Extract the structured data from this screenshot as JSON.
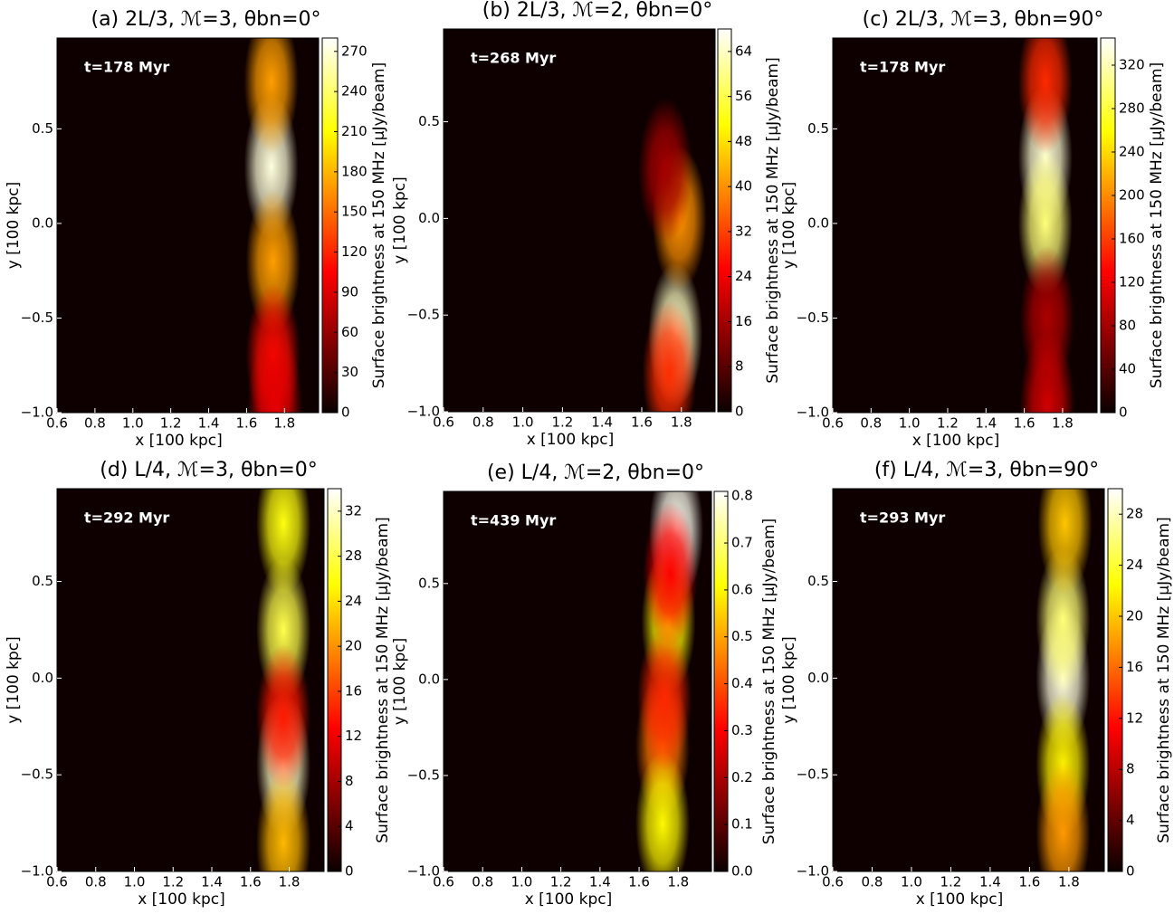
{
  "chart_data": [
    {
      "type": "heatmap",
      "title": "(a) 2L/3, ℳ=3, θbn=0°",
      "annotation": "t=178 Myr",
      "xlabel": "x [100 kpc]",
      "ylabel": "y [100 kpc]",
      "colorbar_label": "Surface brightness at 150 MHz [μJy/beam]",
      "xlim": [
        0.6,
        1.98
      ],
      "ylim": [
        -1,
        0.98
      ],
      "xticks": [
        0.6,
        0.8,
        {
          "value": 1,
          "label": "1.0"
        },
        1.2,
        1.4,
        1.6,
        1.8
      ],
      "yticks": [
        {
          "value": -1,
          "label": "−1.0"
        },
        {
          "value": -0.5,
          "label": "−0.5"
        },
        {
          "value": 0,
          "label": "0.0"
        },
        0.5
      ],
      "clim": [
        0,
        280
      ],
      "cticks": [
        0,
        30,
        60,
        90,
        120,
        150,
        180,
        210,
        240,
        270
      ],
      "peaks": [
        {
          "x": 1.73,
          "y": 0.3,
          "value": 270
        },
        {
          "x": 1.74,
          "y": -0.2,
          "value": 170
        },
        {
          "x": 1.73,
          "y": 0.75,
          "value": 170
        },
        {
          "x": 1.74,
          "y": -0.7,
          "value": 110
        },
        {
          "x": 1.75,
          "y": -0.95,
          "value": 90
        }
      ]
    },
    {
      "type": "heatmap",
      "title": "(b) 2L/3, ℳ=2, θbn=0°",
      "annotation": "t=268 Myr",
      "xlabel": "x [100 kpc]",
      "ylabel": "y [100 kpc]",
      "colorbar_label": "Surface brightness at 150 MHz [μJy/beam]",
      "xlim": [
        0.6,
        1.97
      ],
      "ylim": [
        -1,
        0.98
      ],
      "xticks": [
        0.6,
        0.8,
        {
          "value": 1,
          "label": "1.0"
        },
        1.2,
        1.4,
        1.6,
        1.8
      ],
      "yticks": [
        {
          "value": -1,
          "label": "−1.0"
        },
        {
          "value": -0.5,
          "label": "−0.5"
        },
        {
          "value": 0,
          "label": "0.0"
        },
        0.5
      ],
      "clim": [
        0,
        68
      ],
      "cticks": [
        0,
        8,
        16,
        24,
        32,
        40,
        48,
        56,
        64
      ],
      "peaks": [
        {
          "x": 1.77,
          "y": -0.6,
          "value": 64
        },
        {
          "x": 1.79,
          "y": 0.0,
          "value": 40
        },
        {
          "x": 1.74,
          "y": -0.8,
          "value": 30
        },
        {
          "x": 1.72,
          "y": 0.25,
          "value": 15
        }
      ]
    },
    {
      "type": "heatmap",
      "title": "(c) 2L/3, ℳ=3, θbn=90°",
      "annotation": "t=178 Myr",
      "xlabel": "x [100 kpc]",
      "ylabel": "y [100 kpc]",
      "colorbar_label": "Surface brightness at 150 MHz [μJy/beam]",
      "xlim": [
        0.6,
        1.98
      ],
      "ylim": [
        -1,
        0.98
      ],
      "xticks": [
        0.6,
        0.8,
        {
          "value": 1,
          "label": "1.0"
        },
        1.2,
        1.4,
        1.6,
        1.8
      ],
      "yticks": [
        {
          "value": -1,
          "label": "−1.0"
        },
        {
          "value": -0.5,
          "label": "−0.5"
        },
        {
          "value": 0,
          "label": "0.0"
        },
        0.5
      ],
      "clim": [
        0,
        345
      ],
      "cticks": [
        0,
        40,
        80,
        120,
        160,
        200,
        240,
        280,
        320
      ],
      "peaks": [
        {
          "x": 1.71,
          "y": 0.35,
          "value": 330
        },
        {
          "x": 1.71,
          "y": 0.0,
          "value": 300
        },
        {
          "x": 1.71,
          "y": 0.75,
          "value": 150
        },
        {
          "x": 1.72,
          "y": -0.5,
          "value": 80
        },
        {
          "x": 1.72,
          "y": -0.95,
          "value": 100
        }
      ]
    },
    {
      "type": "heatmap",
      "title": "(d) L/4, ℳ=3, θbn=0°",
      "annotation": "t=292 Myr",
      "xlabel": "x [100 kpc]",
      "ylabel": "y [100 kpc]",
      "colorbar_label": "Surface brightness at 150 MHz [μJy/beam]",
      "xlim": [
        0.6,
        1.98
      ],
      "ylim": [
        -1,
        0.98
      ],
      "xticks": [
        0.6,
        0.8,
        {
          "value": 1,
          "label": "1.0"
        },
        1.2,
        1.4,
        1.6,
        1.8
      ],
      "yticks": [
        {
          "value": -1,
          "label": "−1.0"
        },
        {
          "value": -0.5,
          "label": "−0.5"
        },
        {
          "value": 0,
          "label": "0.0"
        },
        0.5
      ],
      "clim": [
        0,
        34
      ],
      "cticks": [
        0,
        4,
        8,
        12,
        16,
        20,
        24,
        28,
        32
      ],
      "peaks": [
        {
          "x": 1.77,
          "y": -0.45,
          "value": 32
        },
        {
          "x": 1.77,
          "y": 0.25,
          "value": 28
        },
        {
          "x": 1.77,
          "y": 0.8,
          "value": 26
        },
        {
          "x": 1.77,
          "y": -0.85,
          "value": 22
        },
        {
          "x": 1.77,
          "y": -0.2,
          "value": 14
        }
      ]
    },
    {
      "type": "heatmap",
      "title": "(e) L/4, ℳ=2, θbn=0°",
      "annotation": "t=439 Myr",
      "xlabel": "x [100 kpc]",
      "ylabel": "y [100 kpc]",
      "colorbar_label": "Surface brightness at 150 MHz [μJy/beam]",
      "xlim": [
        0.6,
        1.97
      ],
      "ylim": [
        -1,
        0.98
      ],
      "xticks": [
        0.6,
        0.8,
        {
          "value": 1,
          "label": "1.0"
        },
        1.2,
        1.4,
        1.6,
        1.8
      ],
      "yticks": [
        {
          "value": -1,
          "label": "−1.0"
        },
        {
          "value": -0.5,
          "label": "−0.5"
        },
        {
          "value": 0,
          "label": "0.0"
        },
        0.5
      ],
      "clim": [
        0,
        0.81
      ],
      "cticks": [
        {
          "value": 0,
          "label": "0.0"
        },
        0.1,
        0.2,
        0.3,
        0.4,
        0.5,
        0.6,
        0.7,
        0.8
      ],
      "peaks": [
        {
          "x": 1.79,
          "y": 0.78,
          "value": 0.8
        },
        {
          "x": 1.75,
          "y": 0.3,
          "value": 0.6
        },
        {
          "x": 1.72,
          "y": -0.35,
          "value": 0.45
        },
        {
          "x": 1.72,
          "y": -0.75,
          "value": 0.6
        },
        {
          "x": 1.73,
          "y": -0.1,
          "value": 0.35
        },
        {
          "x": 1.76,
          "y": 0.55,
          "value": 0.3
        }
      ]
    },
    {
      "type": "heatmap",
      "title": "(f) L/4, ℳ=3, θbn=90°",
      "annotation": "t=293 Myr",
      "xlabel": "x [100 kpc]",
      "ylabel": "y [100 kpc]",
      "colorbar_label": "Surface brightness at 150 MHz [μJy/beam]",
      "xlim": [
        0.6,
        1.98
      ],
      "ylim": [
        -1,
        0.98
      ],
      "xticks": [
        0.6,
        0.8,
        {
          "value": 1,
          "label": "1.0"
        },
        1.2,
        1.4,
        1.6,
        1.8
      ],
      "yticks": [
        {
          "value": -1,
          "label": "−1.0"
        },
        {
          "value": -0.5,
          "label": "−0.5"
        },
        {
          "value": 0,
          "label": "0.0"
        },
        0.5
      ],
      "clim": [
        0,
        30
      ],
      "cticks": [
        0,
        4,
        8,
        12,
        16,
        20,
        24,
        28
      ],
      "peaks": [
        {
          "x": 1.77,
          "y": 0.0,
          "value": 29
        },
        {
          "x": 1.77,
          "y": 0.3,
          "value": 26
        },
        {
          "x": 1.77,
          "y": -0.45,
          "value": 22
        },
        {
          "x": 1.78,
          "y": 0.8,
          "value": 20
        },
        {
          "x": 1.77,
          "y": -0.8,
          "value": 18
        }
      ]
    }
  ]
}
